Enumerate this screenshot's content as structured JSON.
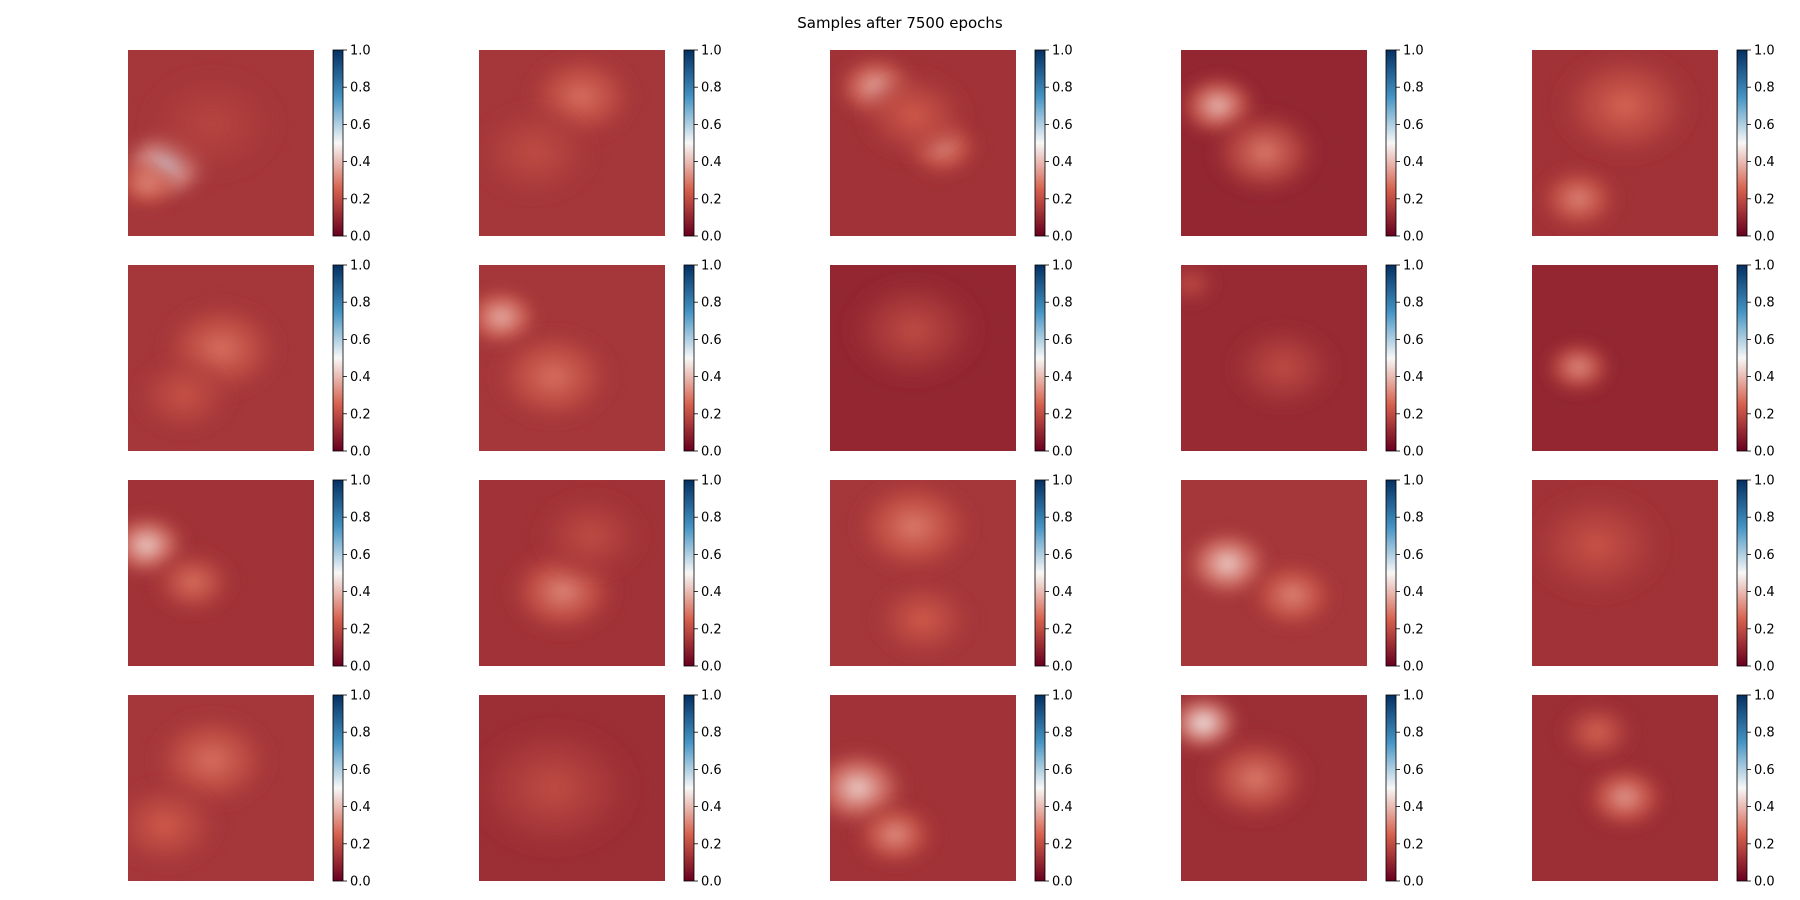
{
  "figure": {
    "title": "Samples after 7500 epochs"
  },
  "chart_data": {
    "type": "heatmap",
    "title": "Samples after 7500 epochs",
    "grid_rows": 4,
    "grid_cols": 5,
    "colormap": "RdBu",
    "colorbar": {
      "ticks": [
        "0.0",
        "0.2",
        "0.4",
        "0.6",
        "0.8",
        "1.0"
      ],
      "range": [
        0,
        1
      ]
    },
    "colors": {
      "low": "#67001f",
      "mid_low": "#d6604d",
      "mid": "#f7f7f7",
      "mid_high": "#4393c3",
      "high": "#053061"
    },
    "panels": [
      {
        "row": 0,
        "col": 0,
        "base": 0.14,
        "max_value": 0.55,
        "features": [
          {
            "x": 0.2,
            "y": 0.62,
            "v": 0.55,
            "s": 0.16
          },
          {
            "x": 0.1,
            "y": 0.72,
            "v": 0.32,
            "s": 0.12
          },
          {
            "x": 0.45,
            "y": 0.4,
            "v": 0.18,
            "s": 0.25
          }
        ]
      },
      {
        "row": 0,
        "col": 1,
        "base": 0.14,
        "max_value": 0.3,
        "features": [
          {
            "x": 0.55,
            "y": 0.25,
            "v": 0.28,
            "s": 0.2
          },
          {
            "x": 0.3,
            "y": 0.55,
            "v": 0.2,
            "s": 0.22
          }
        ]
      },
      {
        "row": 0,
        "col": 2,
        "base": 0.13,
        "max_value": 0.42,
        "features": [
          {
            "x": 0.25,
            "y": 0.2,
            "v": 0.4,
            "s": 0.15
          },
          {
            "x": 0.6,
            "y": 0.52,
            "v": 0.34,
            "s": 0.14
          },
          {
            "x": 0.45,
            "y": 0.35,
            "v": 0.24,
            "s": 0.2
          }
        ]
      },
      {
        "row": 0,
        "col": 3,
        "base": 0.1,
        "max_value": 0.42,
        "features": [
          {
            "x": 0.2,
            "y": 0.3,
            "v": 0.42,
            "s": 0.15
          },
          {
            "x": 0.45,
            "y": 0.55,
            "v": 0.3,
            "s": 0.2
          }
        ]
      },
      {
        "row": 0,
        "col": 4,
        "base": 0.13,
        "max_value": 0.32,
        "features": [
          {
            "x": 0.25,
            "y": 0.8,
            "v": 0.32,
            "s": 0.15
          },
          {
            "x": 0.5,
            "y": 0.3,
            "v": 0.26,
            "s": 0.25
          }
        ]
      },
      {
        "row": 1,
        "col": 0,
        "base": 0.14,
        "max_value": 0.3,
        "features": [
          {
            "x": 0.5,
            "y": 0.45,
            "v": 0.28,
            "s": 0.22
          },
          {
            "x": 0.3,
            "y": 0.7,
            "v": 0.22,
            "s": 0.18
          }
        ]
      },
      {
        "row": 1,
        "col": 1,
        "base": 0.14,
        "max_value": 0.4,
        "features": [
          {
            "x": 0.12,
            "y": 0.28,
            "v": 0.4,
            "s": 0.14
          },
          {
            "x": 0.4,
            "y": 0.6,
            "v": 0.28,
            "s": 0.22
          }
        ]
      },
      {
        "row": 1,
        "col": 2,
        "base": 0.1,
        "max_value": 0.22,
        "features": [
          {
            "x": 0.45,
            "y": 0.35,
            "v": 0.2,
            "s": 0.25
          }
        ]
      },
      {
        "row": 1,
        "col": 3,
        "base": 0.11,
        "max_value": 0.22,
        "features": [
          {
            "x": 0.55,
            "y": 0.55,
            "v": 0.2,
            "s": 0.2
          },
          {
            "x": 0.05,
            "y": 0.1,
            "v": 0.2,
            "s": 0.1
          }
        ]
      },
      {
        "row": 1,
        "col": 4,
        "base": 0.1,
        "max_value": 0.34,
        "features": [
          {
            "x": 0.25,
            "y": 0.55,
            "v": 0.34,
            "s": 0.13
          }
        ]
      },
      {
        "row": 2,
        "col": 0,
        "base": 0.13,
        "max_value": 0.45,
        "features": [
          {
            "x": 0.1,
            "y": 0.35,
            "v": 0.45,
            "s": 0.15
          },
          {
            "x": 0.35,
            "y": 0.55,
            "v": 0.28,
            "s": 0.15
          }
        ]
      },
      {
        "row": 2,
        "col": 1,
        "base": 0.13,
        "max_value": 0.32,
        "features": [
          {
            "x": 0.45,
            "y": 0.6,
            "v": 0.32,
            "s": 0.2
          },
          {
            "x": 0.6,
            "y": 0.3,
            "v": 0.2,
            "s": 0.2
          }
        ]
      },
      {
        "row": 2,
        "col": 2,
        "base": 0.14,
        "max_value": 0.32,
        "features": [
          {
            "x": 0.45,
            "y": 0.25,
            "v": 0.3,
            "s": 0.22
          },
          {
            "x": 0.5,
            "y": 0.75,
            "v": 0.24,
            "s": 0.18
          }
        ]
      },
      {
        "row": 2,
        "col": 3,
        "base": 0.14,
        "max_value": 0.45,
        "features": [
          {
            "x": 0.25,
            "y": 0.45,
            "v": 0.45,
            "s": 0.16
          },
          {
            "x": 0.6,
            "y": 0.62,
            "v": 0.32,
            "s": 0.16
          }
        ]
      },
      {
        "row": 2,
        "col": 4,
        "base": 0.13,
        "max_value": 0.24,
        "features": [
          {
            "x": 0.35,
            "y": 0.35,
            "v": 0.22,
            "s": 0.25
          }
        ]
      },
      {
        "row": 3,
        "col": 0,
        "base": 0.14,
        "max_value": 0.3,
        "features": [
          {
            "x": 0.45,
            "y": 0.35,
            "v": 0.28,
            "s": 0.22
          },
          {
            "x": 0.2,
            "y": 0.7,
            "v": 0.24,
            "s": 0.2
          }
        ]
      },
      {
        "row": 3,
        "col": 1,
        "base": 0.12,
        "max_value": 0.22,
        "features": [
          {
            "x": 0.4,
            "y": 0.5,
            "v": 0.2,
            "s": 0.3
          }
        ]
      },
      {
        "row": 3,
        "col": 2,
        "base": 0.13,
        "max_value": 0.45,
        "features": [
          {
            "x": 0.15,
            "y": 0.5,
            "v": 0.45,
            "s": 0.18
          },
          {
            "x": 0.35,
            "y": 0.75,
            "v": 0.34,
            "s": 0.15
          }
        ]
      },
      {
        "row": 3,
        "col": 3,
        "base": 0.12,
        "max_value": 0.5,
        "features": [
          {
            "x": 0.12,
            "y": 0.15,
            "v": 0.5,
            "s": 0.14
          },
          {
            "x": 0.4,
            "y": 0.45,
            "v": 0.3,
            "s": 0.2
          }
        ]
      },
      {
        "row": 3,
        "col": 4,
        "base": 0.12,
        "max_value": 0.36,
        "features": [
          {
            "x": 0.5,
            "y": 0.55,
            "v": 0.36,
            "s": 0.15
          },
          {
            "x": 0.35,
            "y": 0.2,
            "v": 0.26,
            "s": 0.14
          }
        ]
      }
    ]
  }
}
